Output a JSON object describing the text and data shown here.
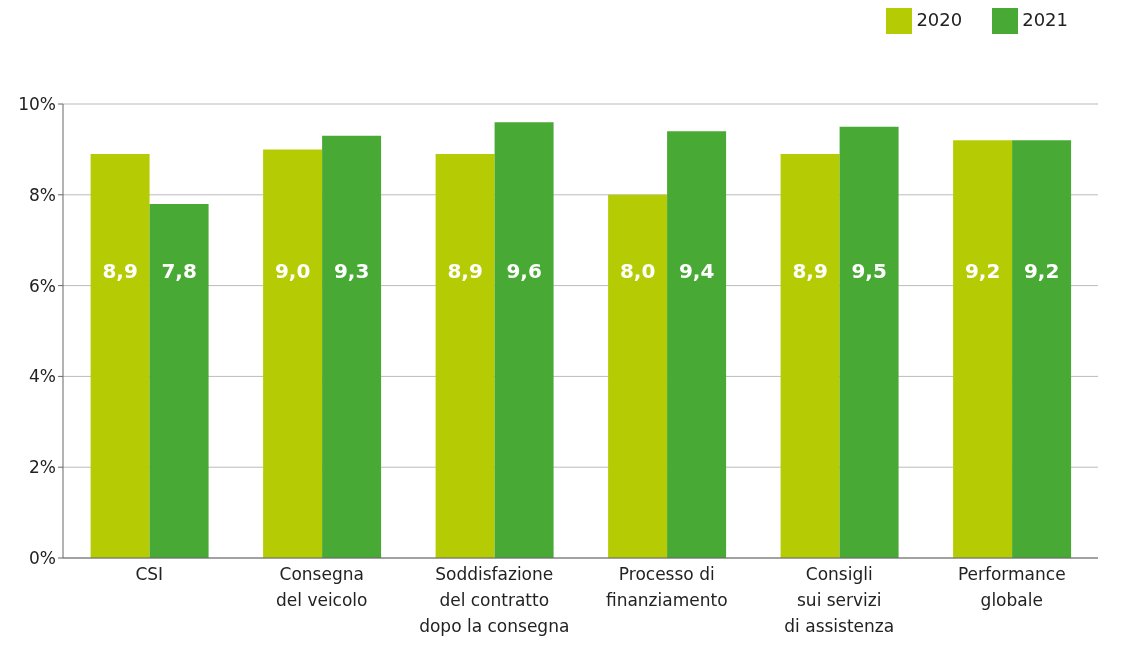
{
  "chart_data": {
    "type": "bar",
    "categories": [
      "CSI",
      "Consegna\ndel veicolo",
      "Soddisfazione\ndel contratto\ndopo la consegna",
      "Processo di\nfinanziamento",
      "Consigli\nsui servizi\ndi assistenza",
      "Performance\nglobale"
    ],
    "series": [
      {
        "name": "2020",
        "color": "#b5cc05",
        "values": [
          8.9,
          9.0,
          8.9,
          8.0,
          8.9,
          9.2
        ],
        "value_labels": [
          "8,9",
          "9,0",
          "8,9",
          "8,0",
          "8,9",
          "9,2"
        ]
      },
      {
        "name": "2021",
        "color": "#48a935",
        "values": [
          7.8,
          9.3,
          9.6,
          9.4,
          9.5,
          9.2
        ],
        "value_labels": [
          "7,8",
          "9,3",
          "9,6",
          "9,4",
          "9,5",
          "9,2"
        ]
      }
    ],
    "ylim": [
      0,
      10
    ],
    "yticks": [
      {
        "value": 0,
        "label": "0%"
      },
      {
        "value": 2,
        "label": "2%"
      },
      {
        "value": 4,
        "label": "4%"
      },
      {
        "value": 6,
        "label": "6%"
      },
      {
        "value": 8,
        "label": "8%"
      },
      {
        "value": 10,
        "label": "10%"
      }
    ],
    "grid": "y",
    "legend": "top right"
  }
}
